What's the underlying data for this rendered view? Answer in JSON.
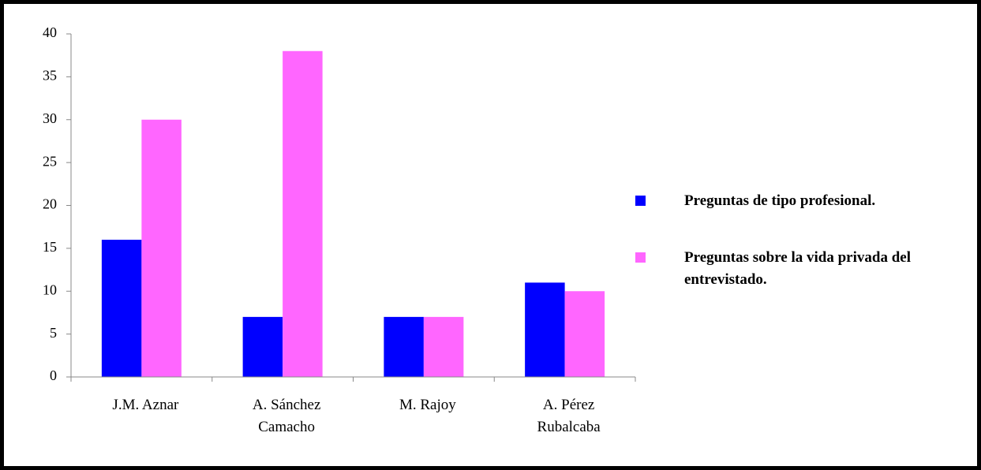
{
  "chart_data": {
    "type": "bar",
    "categories": [
      "J.M. Aznar",
      "A. Sánchez Camacho",
      "M. Rajoy",
      "A. Pérez Rubalcaba"
    ],
    "series": [
      {
        "name": "Preguntas de tipo profesional.",
        "color": "#0000ff",
        "values": [
          16,
          7,
          7,
          11
        ]
      },
      {
        "name": "Preguntas sobre la vida privada del entrevistado.",
        "color": "#ff66ff",
        "values": [
          30,
          38,
          7,
          10
        ]
      }
    ],
    "ylim": [
      0,
      40
    ],
    "yticks": [
      0,
      5,
      10,
      15,
      20,
      25,
      30,
      35,
      40
    ],
    "grid": false,
    "legend": "right"
  }
}
